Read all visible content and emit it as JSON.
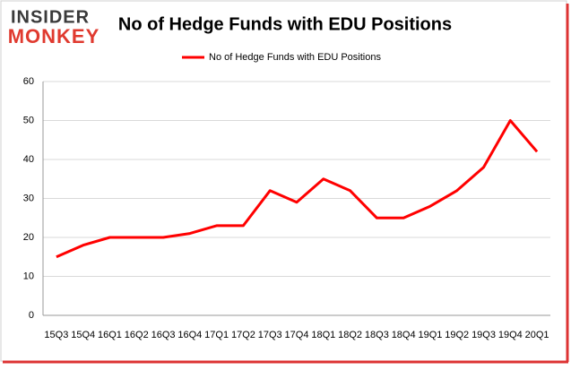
{
  "logo": {
    "line1": "INSIDER",
    "line2": "MONKEY"
  },
  "chart_data": {
    "type": "line",
    "title": "No of Hedge Funds with EDU Positions",
    "categories": [
      "15Q3",
      "15Q4",
      "16Q1",
      "16Q2",
      "16Q3",
      "16Q4",
      "17Q1",
      "17Q2",
      "17Q3",
      "17Q4",
      "18Q1",
      "18Q2",
      "18Q3",
      "18Q4",
      "19Q1",
      "19Q2",
      "19Q3",
      "19Q4",
      "20Q1"
    ],
    "series": [
      {
        "name": "No of Hedge Funds with EDU Positions",
        "color": "#ff0000",
        "values": [
          15,
          18,
          20,
          20,
          20,
          21,
          23,
          23,
          32,
          29,
          35,
          32,
          25,
          25,
          28,
          32,
          38,
          50,
          42
        ]
      }
    ],
    "ylim": [
      0,
      60
    ],
    "yticks": [
      0,
      10,
      20,
      30,
      40,
      50,
      60
    ],
    "grid": true,
    "legend": "top"
  }
}
